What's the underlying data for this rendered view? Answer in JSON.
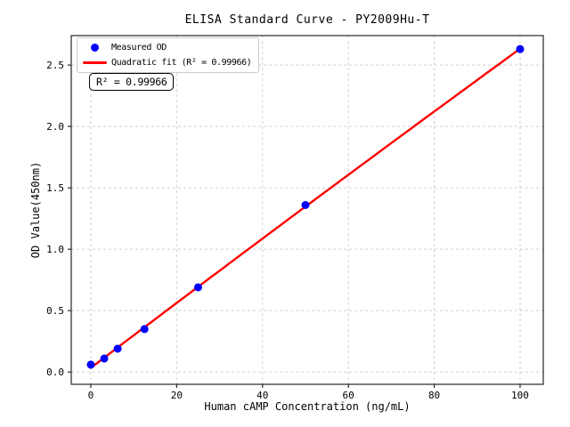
{
  "chart_data": {
    "type": "scatter",
    "title": "ELISA Standard Curve - PY2009Hu-T",
    "xlabel": "Human cAMP Concentration (ng/mL)",
    "ylabel": "OD Value(450nm)",
    "annotation": "R² = 0.99966",
    "r_squared": "0.99966",
    "grid": true,
    "legend_position": "upper left",
    "xlim": [
      -4.56,
      105.4
    ],
    "ylim": [
      -0.1,
      2.74
    ],
    "xticks": [
      0,
      20,
      40,
      60,
      80,
      100
    ],
    "xtick_labels": [
      "0",
      "20",
      "40",
      "60",
      "80",
      "100"
    ],
    "yticks": [
      0,
      0.5,
      1.0,
      1.5,
      2.0,
      2.5
    ],
    "ytick_labels": [
      "0.0",
      "0.5",
      "1.0",
      "1.5",
      "2.0",
      "2.5"
    ],
    "series": [
      {
        "name": "Measured OD",
        "type": "scatter",
        "color": "#0000ff",
        "x": [
          0,
          3.125,
          6.25,
          12.5,
          25,
          50,
          100
        ],
        "y": [
          0.06,
          0.11,
          0.19,
          0.35,
          0.69,
          1.36,
          2.63
        ]
      },
      {
        "name": "Quadratic fit (R² = 0.99966)",
        "type": "line",
        "color": "#ff0000",
        "fit": "quadratic",
        "x_range": [
          0,
          100
        ]
      }
    ],
    "legend": [
      {
        "label": "Measured OD",
        "marker": "circle",
        "color": "#0000ff"
      },
      {
        "label": "Quadratic fit (R² = 0.99966)",
        "marker": "line",
        "color": "#ff0000"
      }
    ],
    "colors": {
      "points": "#0000ff",
      "fit_line": "#ff0000",
      "grid": "#d0d0d0",
      "axis": "#262626",
      "tick_text": "#000000",
      "legend_border": "#cccccc",
      "annotation_border": "#000000",
      "background": "#ffffff"
    }
  }
}
